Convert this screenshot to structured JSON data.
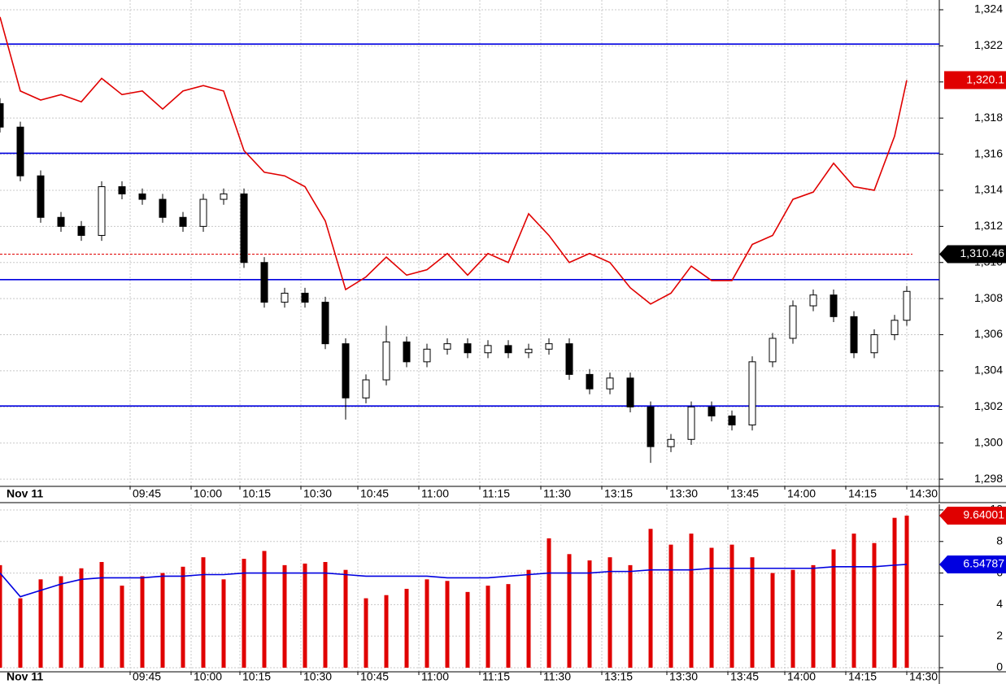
{
  "chart_data": [
    {
      "type": "candlestick",
      "date_label": "Nov 11",
      "x": [
        0,
        5,
        10,
        15,
        20,
        25,
        30,
        35,
        40,
        45,
        50,
        55,
        60,
        65,
        70,
        75,
        80,
        85,
        90,
        95,
        100,
        105,
        110,
        115,
        120,
        125,
        130,
        135,
        140,
        145,
        150,
        155,
        160,
        165,
        170,
        175,
        180,
        185,
        190,
        195,
        200,
        205,
        210,
        215,
        220,
        223
      ],
      "open": [
        1318.8,
        1317.5,
        1314.8,
        1312.5,
        1312.0,
        1311.5,
        1314.2,
        1313.8,
        1313.5,
        1312.5,
        1312.0,
        1313.5,
        1313.8,
        1310.0,
        1307.8,
        1308.3,
        1307.8,
        1305.5,
        1302.5,
        1303.5,
        1305.6,
        1304.5,
        1305.2,
        1305.5,
        1305.0,
        1305.4,
        1305.0,
        1305.2,
        1305.5,
        1303.8,
        1303.0,
        1303.6,
        1302.0,
        1299.8,
        1300.2,
        1302.0,
        1301.5,
        1301.0,
        1304.5,
        1305.8,
        1307.6,
        1308.2,
        1307.0,
        1305.0,
        1306.0,
        1306.8
      ],
      "high": [
        1319.1,
        1317.8,
        1315.1,
        1312.8,
        1312.3,
        1314.5,
        1314.5,
        1314.1,
        1313.8,
        1312.8,
        1313.8,
        1314.1,
        1314.1,
        1310.3,
        1308.6,
        1308.6,
        1308.1,
        1305.8,
        1303.8,
        1306.5,
        1305.9,
        1305.5,
        1305.8,
        1305.8,
        1305.7,
        1305.7,
        1305.5,
        1305.8,
        1305.8,
        1304.1,
        1303.9,
        1303.9,
        1302.3,
        1300.5,
        1302.3,
        1302.3,
        1301.8,
        1304.8,
        1306.1,
        1307.9,
        1308.5,
        1308.5,
        1307.3,
        1306.3,
        1307.1,
        1308.7
      ],
      "low": [
        1317.2,
        1314.5,
        1312.2,
        1311.7,
        1311.2,
        1311.2,
        1313.5,
        1313.2,
        1312.2,
        1311.7,
        1311.7,
        1313.2,
        1309.7,
        1307.5,
        1307.5,
        1307.5,
        1305.2,
        1301.3,
        1302.2,
        1303.2,
        1304.2,
        1304.2,
        1304.9,
        1304.7,
        1304.7,
        1304.7,
        1304.7,
        1304.9,
        1303.5,
        1302.7,
        1302.7,
        1301.7,
        1298.9,
        1299.5,
        1299.9,
        1301.2,
        1300.7,
        1300.7,
        1304.2,
        1305.5,
        1307.3,
        1306.7,
        1304.7,
        1304.7,
        1305.7,
        1306.5
      ],
      "close": [
        1317.5,
        1314.8,
        1312.5,
        1312.0,
        1311.5,
        1314.2,
        1313.8,
        1313.5,
        1312.5,
        1312.0,
        1313.5,
        1313.8,
        1310.0,
        1307.8,
        1308.3,
        1307.8,
        1305.5,
        1302.5,
        1303.5,
        1305.6,
        1304.5,
        1305.2,
        1305.5,
        1305.0,
        1305.4,
        1305.0,
        1305.2,
        1305.5,
        1303.8,
        1303.0,
        1303.6,
        1302.0,
        1299.8,
        1300.2,
        1302.0,
        1301.5,
        1301.0,
        1304.5,
        1305.8,
        1307.6,
        1308.2,
        1307.0,
        1305.0,
        1306.0,
        1306.8,
        1308.4
      ],
      "series": [
        {
          "color": "#e00000",
          "values": [
            1323.6,
            1319.5,
            1319.0,
            1319.3,
            1318.9,
            1320.2,
            1319.3,
            1319.5,
            1318.5,
            1319.5,
            1319.8,
            1319.5,
            1316.2,
            1315.0,
            1314.8,
            1314.2,
            1312.3,
            1308.5,
            1309.2,
            1310.3,
            1309.3,
            1309.6,
            1310.5,
            1309.3,
            1310.5,
            1310.0,
            1312.7,
            1311.5,
            1310.0,
            1310.5,
            1310.0,
            1308.6,
            1307.7,
            1308.3,
            1309.8,
            1309.0,
            1309.0,
            1311.0,
            1311.5,
            1313.5,
            1313.9,
            1315.5,
            1314.2,
            1314.0,
            1317.0,
            1320.1
          ],
          "last_label": {
            "value": 1320.1,
            "label": "1,320.1"
          }
        }
      ],
      "horizontal_lines": {
        "color": "#0000e0",
        "values": [
          1322.1,
          1316.05,
          1309.05,
          1302.05
        ]
      },
      "current_price": {
        "value": 1310.46,
        "label": "1,310.46"
      },
      "ylim": [
        1297.6,
        1324.54
      ],
      "yticks": [
        {
          "value": 1298,
          "label": "1,298"
        },
        {
          "value": 1300,
          "label": "1,300"
        },
        {
          "value": 1302,
          "label": "1,302"
        },
        {
          "value": 1304,
          "label": "1,304"
        },
        {
          "value": 1306,
          "label": "1,306"
        },
        {
          "value": 1308,
          "label": "1,308"
        },
        {
          "value": 1310,
          "label": "1,310"
        },
        {
          "value": 1312,
          "label": "1,312"
        },
        {
          "value": 1314,
          "label": "1,314"
        },
        {
          "value": 1316,
          "label": "1,316"
        },
        {
          "value": 1318,
          "label": "1,318"
        },
        {
          "value": 1320,
          "label": "1,320"
        },
        {
          "value": 1322,
          "label": "1,322"
        },
        {
          "value": 1324,
          "label": "1,324"
        }
      ],
      "xlim": [
        0,
        231
      ],
      "xticks": [
        {
          "value": 32,
          "label": "09:45"
        },
        {
          "value": 47,
          "label": "10:00"
        },
        {
          "value": 59,
          "label": "10:15"
        },
        {
          "value": 74,
          "label": "10:30"
        },
        {
          "value": 88,
          "label": "10:45"
        },
        {
          "value": 103,
          "label": "11:00"
        },
        {
          "value": 118,
          "label": "11:15"
        },
        {
          "value": 133,
          "label": "11:30"
        },
        {
          "value": 148,
          "label": "13:15"
        },
        {
          "value": 164,
          "label": "13:30"
        },
        {
          "value": 179,
          "label": "13:45"
        },
        {
          "value": 193,
          "label": "14:00"
        },
        {
          "value": 208,
          "label": "14:15"
        },
        {
          "value": 223,
          "label": "14:30"
        }
      ],
      "grid": true
    },
    {
      "type": "bar",
      "date_label": "Nov 11",
      "x": [
        0,
        5,
        10,
        15,
        20,
        25,
        30,
        35,
        40,
        45,
        50,
        55,
        60,
        65,
        70,
        75,
        80,
        85,
        90,
        95,
        100,
        105,
        110,
        115,
        120,
        125,
        130,
        135,
        140,
        145,
        150,
        155,
        160,
        165,
        170,
        175,
        180,
        185,
        190,
        195,
        200,
        205,
        210,
        215,
        220,
        223
      ],
      "values": [
        6.5,
        4.4,
        5.6,
        5.8,
        6.3,
        6.7,
        5.2,
        5.8,
        6.0,
        6.4,
        7.0,
        5.6,
        6.9,
        7.4,
        6.5,
        6.6,
        6.7,
        6.2,
        4.4,
        4.6,
        5.0,
        5.6,
        5.5,
        4.8,
        5.2,
        5.3,
        6.2,
        8.2,
        7.2,
        6.8,
        7.0,
        6.5,
        8.8,
        7.8,
        8.5,
        7.6,
        7.8,
        7.0,
        6.0,
        6.2,
        6.5,
        7.5,
        8.5,
        7.9,
        9.5,
        9.64001
      ],
      "color": "#e00000",
      "series": [
        {
          "color": "#0000e0",
          "values": [
            6.0,
            4.5,
            4.9,
            5.3,
            5.6,
            5.7,
            5.7,
            5.7,
            5.8,
            5.8,
            5.9,
            5.9,
            6.0,
            6.0,
            6.0,
            6.0,
            6.0,
            5.9,
            5.8,
            5.8,
            5.8,
            5.8,
            5.7,
            5.7,
            5.7,
            5.8,
            5.9,
            6.0,
            6.0,
            6.0,
            6.1,
            6.1,
            6.2,
            6.2,
            6.2,
            6.3,
            6.3,
            6.3,
            6.3,
            6.3,
            6.3,
            6.4,
            6.4,
            6.4,
            6.5,
            6.54787
          ]
        }
      ],
      "ylim": [
        -0.26,
        10.36
      ],
      "yticks": [
        0,
        2,
        4,
        6,
        8,
        10
      ],
      "xlim": [
        0,
        231
      ],
      "xticks": [
        {
          "value": 32,
          "label": "09:45"
        },
        {
          "value": 47,
          "label": "10:00"
        },
        {
          "value": 59,
          "label": "10:15"
        },
        {
          "value": 74,
          "label": "10:30"
        },
        {
          "value": 88,
          "label": "10:45"
        },
        {
          "value": 103,
          "label": "11:00"
        },
        {
          "value": 118,
          "label": "11:15"
        },
        {
          "value": 133,
          "label": "11:30"
        },
        {
          "value": 148,
          "label": "13:15"
        },
        {
          "value": 164,
          "label": "13:30"
        },
        {
          "value": 179,
          "label": "13:45"
        },
        {
          "value": 193,
          "label": "14:00"
        },
        {
          "value": 208,
          "label": "14:15"
        },
        {
          "value": 223,
          "label": "14:30"
        }
      ],
      "grid": true
    }
  ]
}
